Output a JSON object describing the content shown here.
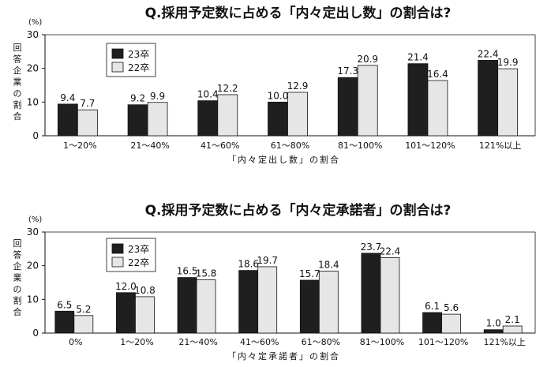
{
  "chart_data": [
    {
      "type": "bar",
      "title": "Q.採用予定数に占める「内々定出し数」の割合は?",
      "unit": "(%)",
      "ylabel": "回答企業の割合",
      "xlabel": "「内々定出し数」の割合",
      "ylim": [
        0,
        30
      ],
      "yticks": [
        0,
        10,
        20,
        30
      ],
      "legend_position": "top-left",
      "categories": [
        "1～20%",
        "21～40%",
        "41～60%",
        "61～80%",
        "81～100%",
        "101～120%",
        "121%以上"
      ],
      "series": [
        {
          "name": "23卒",
          "color": "#1f1f1f",
          "values": [
            9.4,
            9.2,
            10.4,
            10.0,
            17.3,
            21.4,
            22.4
          ]
        },
        {
          "name": "22卒",
          "color": "#e6e6e6",
          "values": [
            7.7,
            9.9,
            12.2,
            12.9,
            20.9,
            16.4,
            19.9
          ]
        }
      ]
    },
    {
      "type": "bar",
      "title": "Q.採用予定数に占める「内々定承諾者」の割合は?",
      "unit": "(%)",
      "ylabel": "回答企業の割合",
      "xlabel": "「内々定承諾者」の割合",
      "ylim": [
        0,
        30
      ],
      "yticks": [
        0,
        10,
        20,
        30
      ],
      "legend_position": "top-left",
      "categories": [
        "0%",
        "1～20%",
        "21～40%",
        "41～60%",
        "61～80%",
        "81～100%",
        "101～120%",
        "121%以上"
      ],
      "series": [
        {
          "name": "23卒",
          "color": "#1f1f1f",
          "values": [
            6.5,
            12.0,
            16.5,
            18.6,
            15.7,
            23.7,
            6.1,
            1.0
          ]
        },
        {
          "name": "22卒",
          "color": "#e6e6e6",
          "values": [
            5.2,
            10.8,
            15.8,
            19.7,
            18.4,
            22.4,
            5.6,
            2.1
          ]
        }
      ]
    }
  ]
}
